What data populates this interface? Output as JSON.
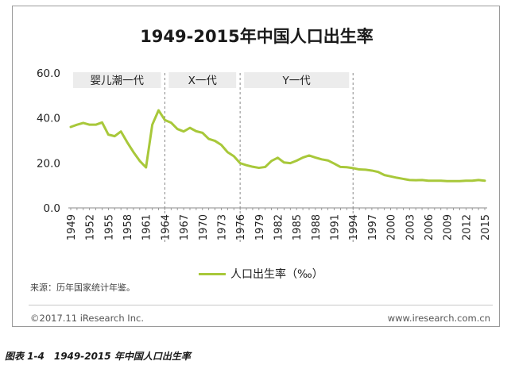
{
  "chart_data": {
    "type": "line",
    "title": "1949-2015年中国人口出生率",
    "ylim": [
      0,
      60
    ],
    "y_ticks": [
      "0.0",
      "20.0",
      "40.0",
      "60.0"
    ],
    "x": [
      1949,
      1950,
      1951,
      1952,
      1953,
      1954,
      1955,
      1956,
      1957,
      1958,
      1959,
      1960,
      1961,
      1962,
      1963,
      1964,
      1965,
      1966,
      1967,
      1968,
      1969,
      1970,
      1971,
      1972,
      1973,
      1974,
      1975,
      1976,
      1977,
      1978,
      1979,
      1980,
      1981,
      1982,
      1983,
      1984,
      1985,
      1986,
      1987,
      1988,
      1989,
      1990,
      1991,
      1992,
      1993,
      1994,
      1995,
      1996,
      1997,
      1998,
      1999,
      2000,
      2001,
      2002,
      2003,
      2004,
      2005,
      2006,
      2007,
      2008,
      2009,
      2010,
      2011,
      2012,
      2013,
      2014,
      2015
    ],
    "x_tick_labels": [
      "1949",
      "1952",
      "1955",
      "1958",
      "1961",
      "1964",
      "1967",
      "1970",
      "1973",
      "1976",
      "1979",
      "1982",
      "1985",
      "1988",
      "1991",
      "1994",
      "1997",
      "2000",
      "2003",
      "2006",
      "2009",
      "2012",
      "2015"
    ],
    "series": [
      {
        "name": "人口出生率（‰）",
        "color": "#a8c83a",
        "values": [
          36.0,
          37.0,
          37.8,
          37.0,
          37.0,
          38.0,
          32.6,
          31.9,
          34.0,
          29.2,
          24.8,
          20.9,
          18.0,
          37.0,
          43.4,
          39.1,
          37.9,
          35.1,
          34.0,
          35.6,
          34.1,
          33.4,
          30.7,
          29.8,
          28.0,
          24.8,
          23.0,
          19.9,
          19.0,
          18.3,
          17.8,
          18.2,
          20.9,
          22.3,
          20.2,
          19.9,
          21.0,
          22.4,
          23.3,
          22.4,
          21.6,
          21.1,
          19.7,
          18.2,
          18.1,
          17.7,
          17.1,
          17.0,
          16.6,
          16.0,
          14.6,
          14.0,
          13.4,
          12.9,
          12.4,
          12.3,
          12.4,
          12.1,
          12.1,
          12.1,
          11.9,
          11.9,
          11.9,
          12.1,
          12.1,
          12.4,
          12.1
        ]
      }
    ],
    "eras": [
      {
        "label": "婴儿潮一代",
        "start": 1949,
        "end": 1964
      },
      {
        "label": "X一代",
        "start": 1964,
        "end": 1976
      },
      {
        "label": "Y一代",
        "start": 1976,
        "end": 1994
      }
    ],
    "era_dividers": [
      1964,
      1976,
      1994
    ],
    "grid": false,
    "legend_position": "bottom"
  },
  "legend": {
    "label": "人口出生率（‰）"
  },
  "source": "来源：历年国家统计年鉴。",
  "copyright": "©2017.11 iResearch Inc.",
  "website": "www.iresearch.com.cn",
  "caption": "图表 1-4　1949-2015 年中国人口出生率"
}
